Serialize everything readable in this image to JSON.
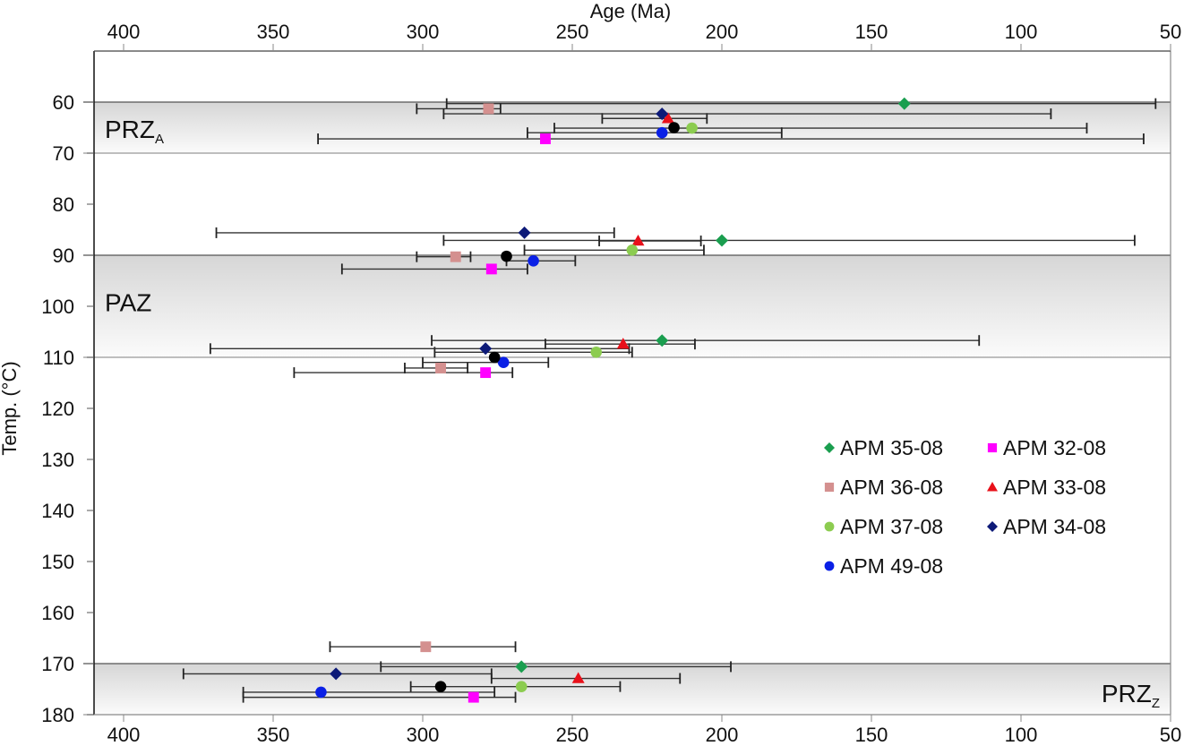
{
  "chart_data": {
    "type": "scatter",
    "title": "",
    "xlabel": "Age (Ma)",
    "ylabel": "Temp. (°C)",
    "xlim": [
      400,
      50
    ],
    "ylim": [
      55,
      180
    ],
    "x_reversed": true,
    "y_reversed": true,
    "x_ticks": [
      400,
      350,
      300,
      250,
      200,
      150,
      100,
      50
    ],
    "y_ticks": [
      60,
      70,
      80,
      90,
      100,
      110,
      120,
      130,
      140,
      150,
      160,
      170,
      180
    ],
    "legend_position": "lower-right",
    "zones": [
      {
        "name": "PRZ",
        "subscript": "A",
        "y_range": [
          60,
          70
        ],
        "label_side": "left"
      },
      {
        "name": "PAZ",
        "subscript": "",
        "y_range": [
          90,
          110
        ],
        "label_side": "left"
      },
      {
        "name": "PRZ",
        "subscript": "Z",
        "y_range": [
          170,
          180
        ],
        "label_side": "right"
      }
    ],
    "series": [
      {
        "name": "APM 35-08",
        "marker": "diamond",
        "color": "#1a9e4f",
        "in_legend": true,
        "points": [
          {
            "age": 139,
            "temp": 60.3,
            "err": [
              292,
              55
            ]
          },
          {
            "age": 200,
            "temp": 87.1,
            "err": [
              293,
              62
            ]
          },
          {
            "age": 220,
            "temp": 106.7,
            "err": [
              297,
              114
            ]
          },
          {
            "age": 267,
            "temp": 170.6,
            "err": [
              314,
              197
            ]
          }
        ]
      },
      {
        "name": "APM 32-08",
        "marker": "square",
        "color": "#ff00ff",
        "in_legend": true,
        "points": [
          {
            "age": 259,
            "temp": 67.2,
            "err": [
              335,
              59
            ]
          },
          {
            "age": 277,
            "temp": 92.7,
            "err": [
              327,
              265
            ]
          },
          {
            "age": 279,
            "temp": 113.0,
            "err": [
              343,
              270
            ]
          },
          {
            "age": 283,
            "temp": 176.6,
            "err": [
              360,
              269
            ]
          }
        ]
      },
      {
        "name": "APM 36-08",
        "marker": "square",
        "color": "#d4908f",
        "in_legend": true,
        "points": [
          {
            "age": 278,
            "temp": 61.3,
            "err": [
              302,
              274
            ]
          },
          {
            "age": 289,
            "temp": 90.3,
            "err": [
              302,
              284
            ]
          },
          {
            "age": 294,
            "temp": 112.1,
            "err": [
              306,
              285
            ]
          },
          {
            "age": 299,
            "temp": 166.7,
            "err": [
              331,
              269
            ]
          }
        ]
      },
      {
        "name": "APM 33-08",
        "marker": "triangle",
        "color": "#e8101a",
        "in_legend": true,
        "points": [
          {
            "age": 218,
            "temp": 63.2,
            "err": [
              240,
              205
            ]
          },
          {
            "age": 228,
            "temp": 87.2,
            "err": [
              241,
              207
            ]
          },
          {
            "age": 233,
            "temp": 107.4,
            "err": [
              259,
              209
            ]
          },
          {
            "age": 248,
            "temp": 172.9,
            "err": [
              277,
              214
            ]
          }
        ]
      },
      {
        "name": "APM 37-08",
        "marker": "circle",
        "color": "#8ccc50",
        "in_legend": true,
        "points": [
          {
            "age": 210,
            "temp": 65.1,
            "err": [
              256,
              78
            ]
          },
          {
            "age": 230,
            "temp": 89.0,
            "err": [
              266,
              206
            ]
          },
          {
            "age": 242,
            "temp": 109.0,
            "err": [
              296,
              230
            ]
          },
          {
            "age": 267,
            "temp": 174.5,
            "err": [
              304,
              234
            ]
          }
        ]
      },
      {
        "name": "APM 34-08",
        "marker": "diamond",
        "color": "#0d1a78",
        "in_legend": true,
        "points": [
          {
            "age": 220,
            "temp": 62.3,
            "err": [
              293,
              90
            ]
          },
          {
            "age": 266,
            "temp": 85.6,
            "err": [
              369,
              236
            ]
          },
          {
            "age": 279,
            "temp": 108.3,
            "err": [
              371,
              231
            ]
          },
          {
            "age": 329,
            "temp": 172.0,
            "err": [
              380,
              277
            ]
          }
        ]
      },
      {
        "name": "APM 49-08",
        "marker": "circle",
        "color": "#0a20e6",
        "in_legend": true,
        "points": [
          {
            "age": 220,
            "temp": 66.0,
            "err": [
              265,
              180
            ]
          },
          {
            "age": 263,
            "temp": 91.1,
            "err": [
              272,
              249
            ]
          },
          {
            "age": 273,
            "temp": 111.0,
            "err": [
              300,
              258
            ]
          },
          {
            "age": 334,
            "temp": 175.6,
            "err": [
              360,
              276
            ]
          }
        ]
      },
      {
        "name": "",
        "marker": "circle",
        "color": "#000000",
        "in_legend": false,
        "points": [
          {
            "age": 216,
            "temp": 65.0,
            "err": null
          },
          {
            "age": 272,
            "temp": 90.2,
            "err": null
          },
          {
            "age": 276,
            "temp": 110.0,
            "err": null
          },
          {
            "age": 294,
            "temp": 174.5,
            "err": null
          }
        ]
      }
    ],
    "legend": [
      {
        "label": "APM 35-08",
        "marker": "diamond",
        "color": "#1a9e4f"
      },
      {
        "label": "APM 32-08",
        "marker": "square",
        "color": "#ff00ff"
      },
      {
        "label": "APM 36-08",
        "marker": "square",
        "color": "#d4908f"
      },
      {
        "label": "APM 33-08",
        "marker": "triangle",
        "color": "#e8101a"
      },
      {
        "label": "APM 37-08",
        "marker": "circle",
        "color": "#8ccc50"
      },
      {
        "label": "APM 34-08",
        "marker": "diamond",
        "color": "#0d1a78"
      },
      {
        "label": "APM 49-08",
        "marker": "circle",
        "color": "#0a20e6"
      }
    ]
  }
}
